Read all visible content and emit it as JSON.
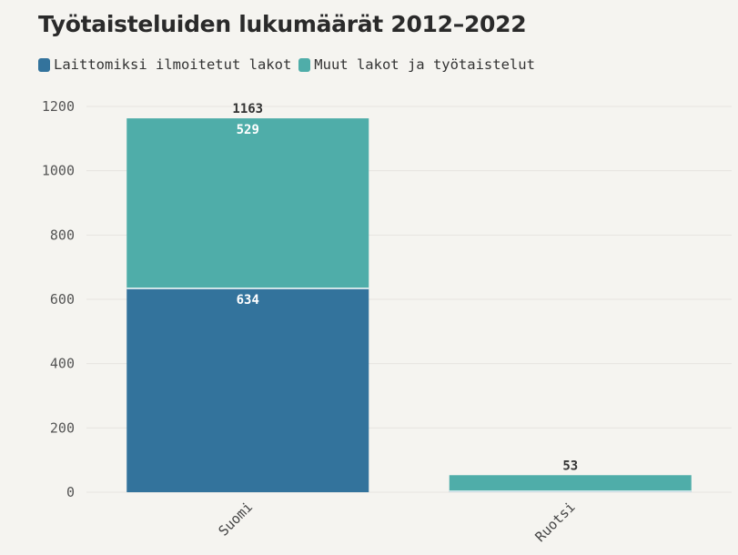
{
  "chart_data": {
    "type": "bar",
    "stacked": true,
    "title": "Työtaisteluiden lukumäärät 2012–2022",
    "categories": [
      "Suomi",
      "Ruotsi"
    ],
    "series": [
      {
        "name": "Laittomiksi ilmoitetut lakot",
        "values": [
          634,
          3
        ],
        "color": "#33739c"
      },
      {
        "name": "Muut lakot ja työtaistelut",
        "values": [
          529,
          50
        ],
        "color": "#4fada9"
      }
    ],
    "totals": [
      1163,
      53
    ],
    "segment_labels": [
      [
        "634",
        "529"
      ],
      [
        null,
        null
      ]
    ],
    "ylim": [
      0,
      1200
    ],
    "yticks": [
      0,
      200,
      400,
      600,
      800,
      1000,
      1200
    ],
    "grid": true,
    "legend_position": "top-left"
  }
}
